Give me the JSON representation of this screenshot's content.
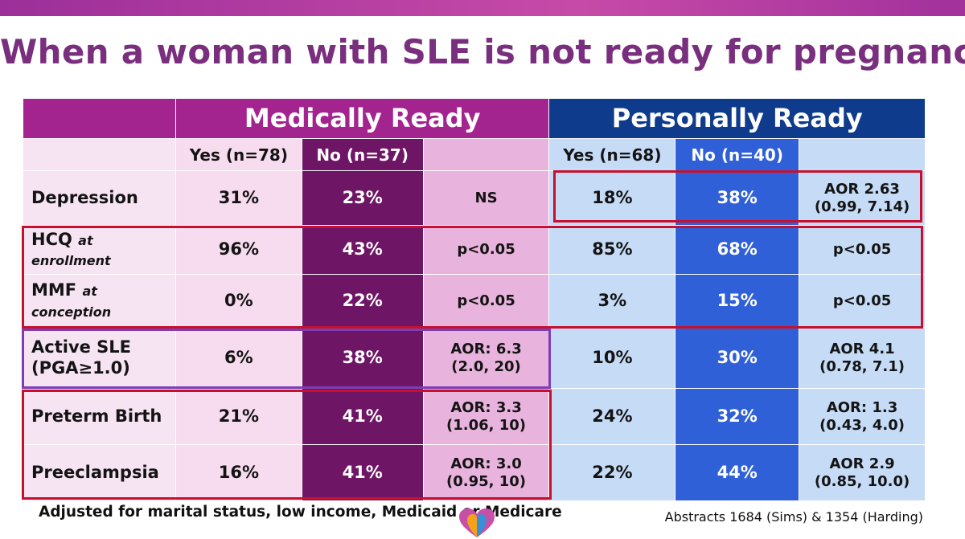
{
  "title": "When a woman with SLE is not ready for pregnancy",
  "groups": {
    "medical": "Medically Ready",
    "personal": "Personally Ready"
  },
  "subheaders": {
    "med_yes": "Yes (n=78)",
    "med_no": "No (n=37)",
    "per_yes": "Yes (n=68)",
    "per_no": "No (n=40)"
  },
  "rows": [
    {
      "label": "Depression",
      "label_note": "",
      "med_yes": "31%",
      "med_no": "23%",
      "med_stat": "NS",
      "per_yes": "18%",
      "per_no": "38%",
      "per_stat": "AOR 2.63\n(0.99, 7.14)"
    },
    {
      "label": "HCQ",
      "label_note": "at enrollment",
      "med_yes": "96%",
      "med_no": "43%",
      "med_stat": "p<0.05",
      "per_yes": "85%",
      "per_no": "68%",
      "per_stat": "p<0.05"
    },
    {
      "label": "MMF",
      "label_note": "at conception",
      "med_yes": "0%",
      "med_no": "22%",
      "med_stat": "p<0.05",
      "per_yes": "3%",
      "per_no": "15%",
      "per_stat": "p<0.05"
    },
    {
      "label": "Active SLE\n(PGA≥1.0)",
      "label_note": "",
      "med_yes": "6%",
      "med_no": "38%",
      "med_stat": "AOR: 6.3\n(2.0, 20)",
      "per_yes": "10%",
      "per_no": "30%",
      "per_stat": "AOR 4.1\n(0.78, 7.1)"
    },
    {
      "label": "Preterm Birth",
      "label_note": "",
      "med_yes": "21%",
      "med_no": "41%",
      "med_stat": "AOR: 3.3\n(1.06, 10)",
      "per_yes": "24%",
      "per_no": "32%",
      "per_stat": "AOR: 1.3\n(0.43, 4.0)"
    },
    {
      "label": "Preeclampsia",
      "label_note": "",
      "med_yes": "16%",
      "med_no": "41%",
      "med_stat": "AOR: 3.0\n(0.95, 10)",
      "per_yes": "22%",
      "per_no": "44%",
      "per_stat": "AOR 2.9\n(0.85, 10.0)"
    }
  ],
  "footnote": "Adjusted for marital status, low income, Medicaid or Medicare",
  "source": "Abstracts 1684 (Sims) & 1354 (Harding)",
  "colors": {
    "magenta_header": "#a3238f",
    "navy_header": "#0e3b8c",
    "plum_column": "#6e1566",
    "blue_column": "#2f60d8",
    "highlight_red": "#c8102e",
    "highlight_purple": "#7b3fb5",
    "title": "#7a2f7e"
  }
}
